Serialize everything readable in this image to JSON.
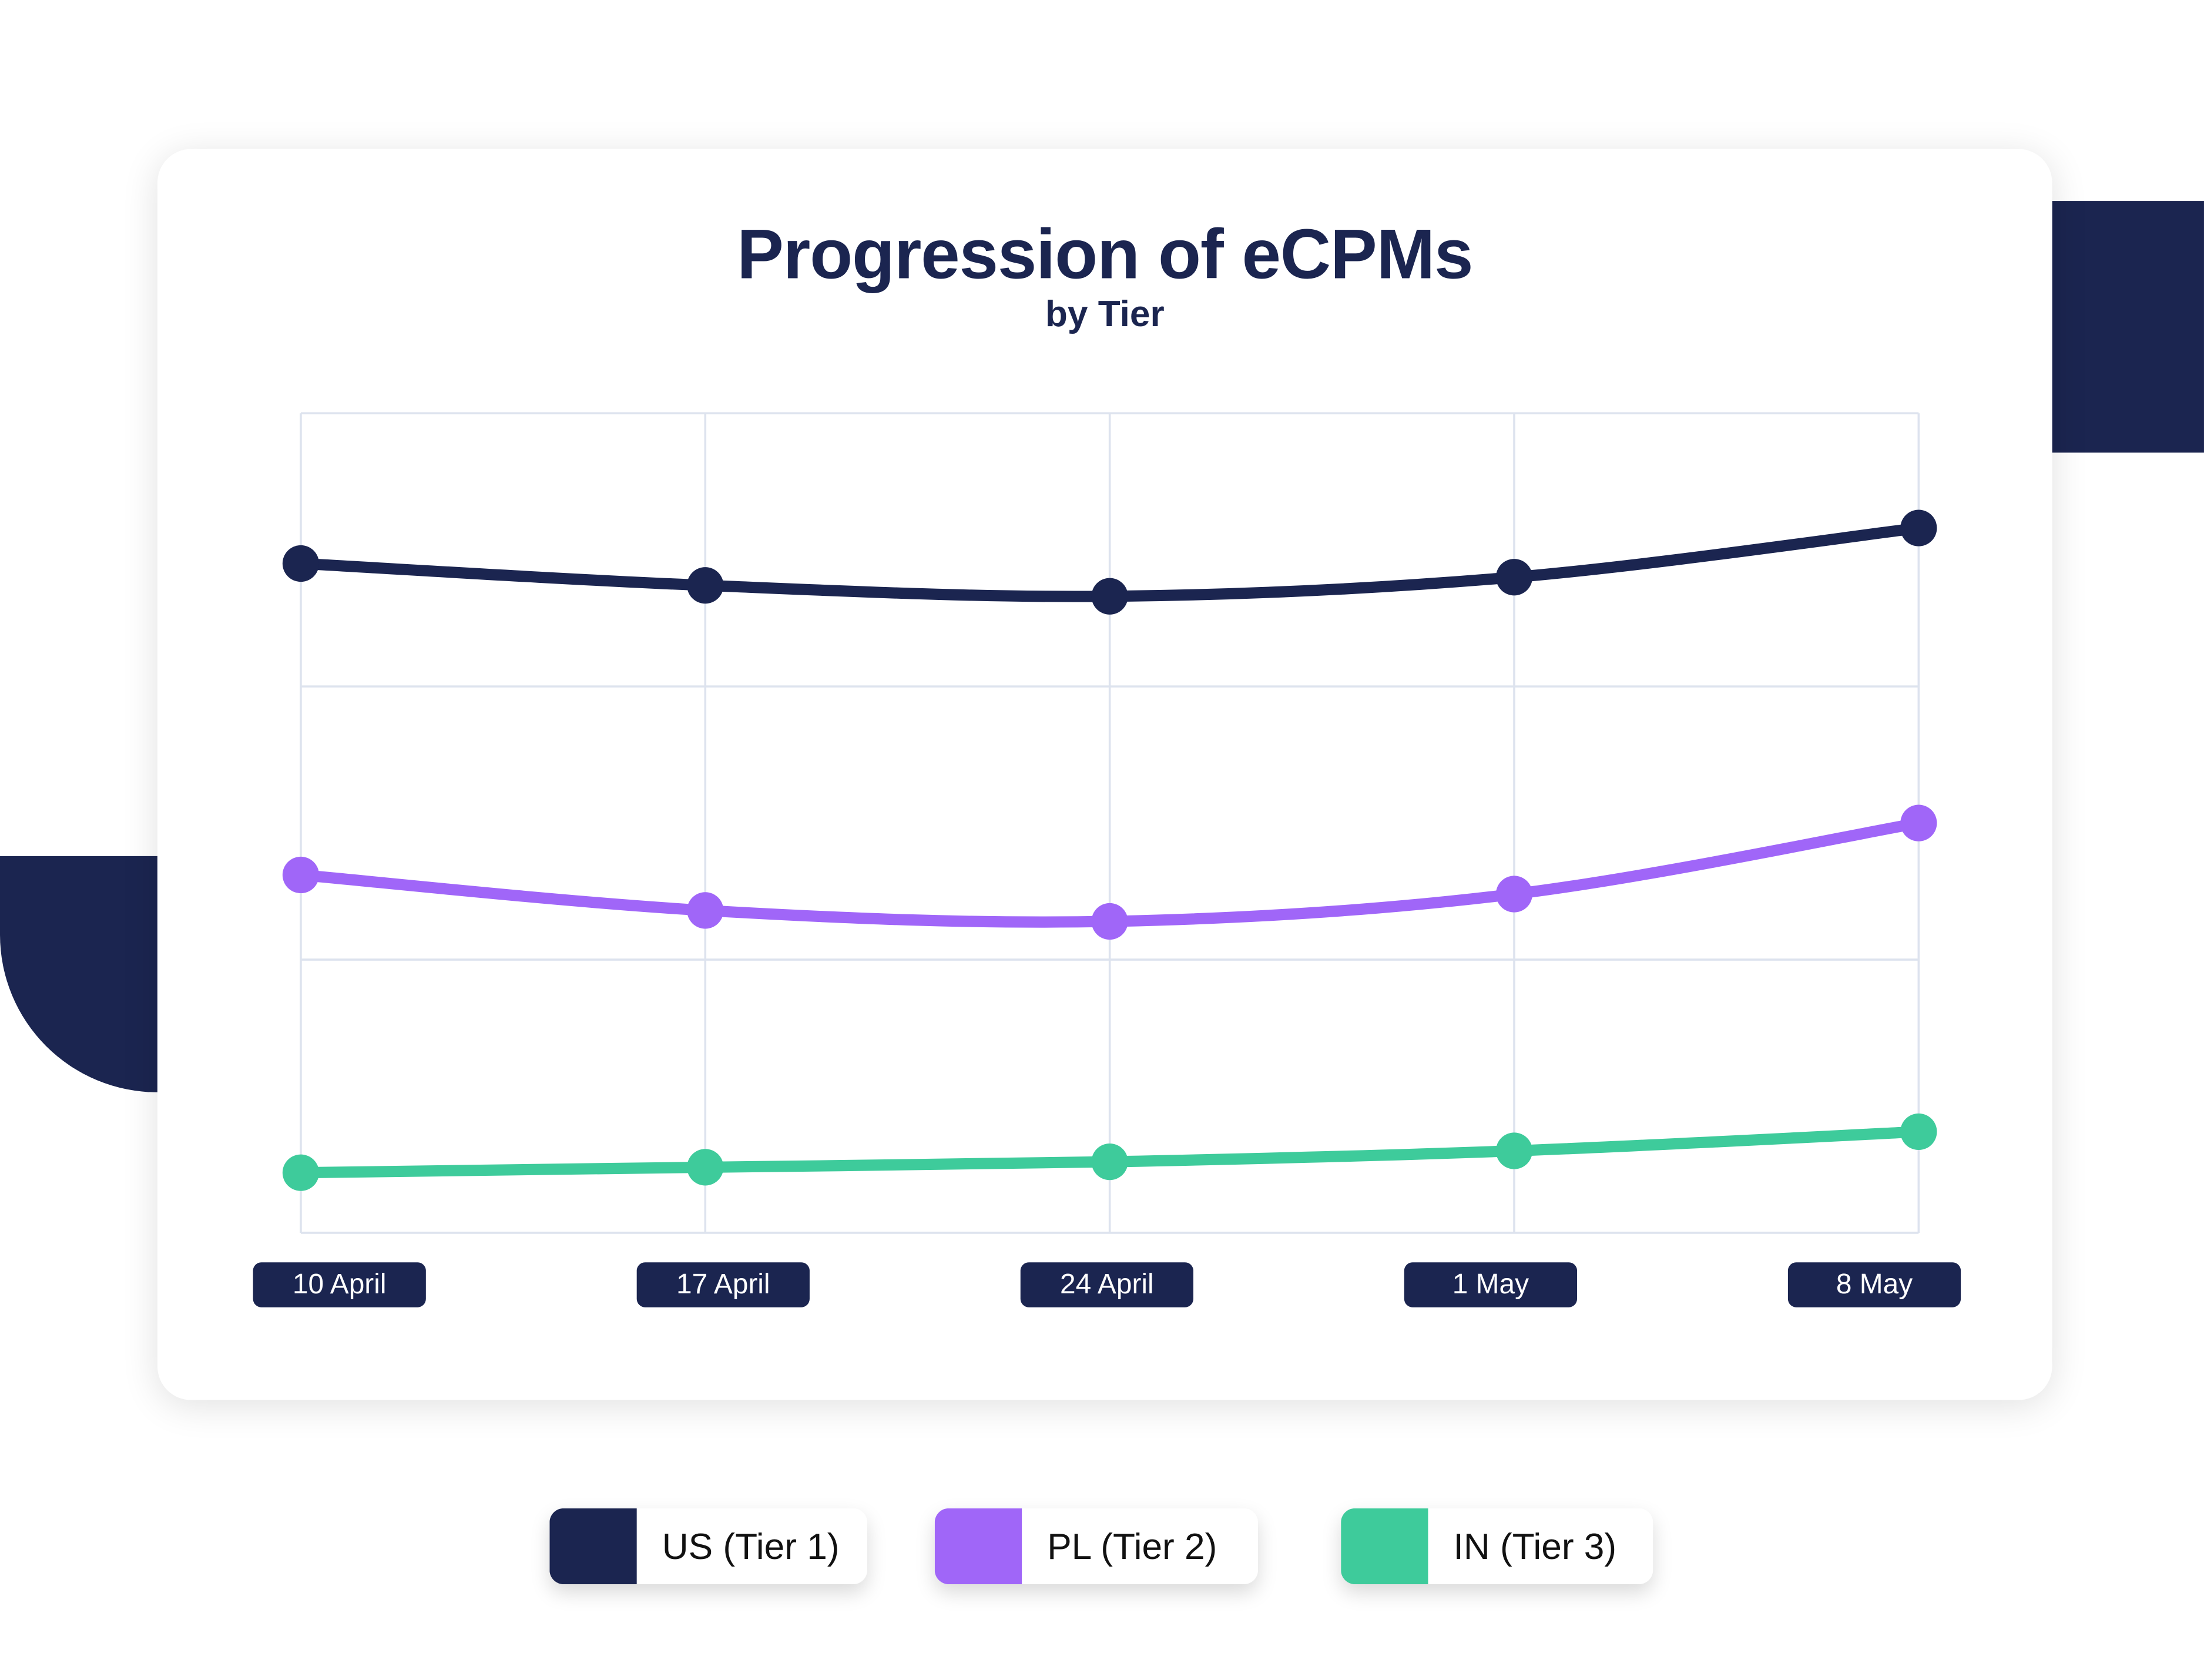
{
  "chart_data": {
    "type": "line",
    "title": "Progression of eCPMs",
    "subtitle": "by Tier",
    "xlabel": "",
    "ylabel": "",
    "categories": [
      "10 April",
      "17 April",
      "24 April",
      "1 May",
      "8 May"
    ],
    "ylim": [
      0,
      3
    ],
    "grid": true,
    "legend_placement": "bottom",
    "series": [
      {
        "name": "US (Tier 1)",
        "color": "#1b2550",
        "values": [
          2.45,
          2.37,
          2.33,
          2.4,
          2.58
        ]
      },
      {
        "name": "PL (Tier 2)",
        "color": "#a066f8",
        "values": [
          1.31,
          1.18,
          1.14,
          1.24,
          1.5
        ]
      },
      {
        "name": "IN (Tier 3)",
        "color": "#3ecb9b",
        "values": [
          0.22,
          0.24,
          0.26,
          0.3,
          0.37
        ]
      }
    ]
  }
}
